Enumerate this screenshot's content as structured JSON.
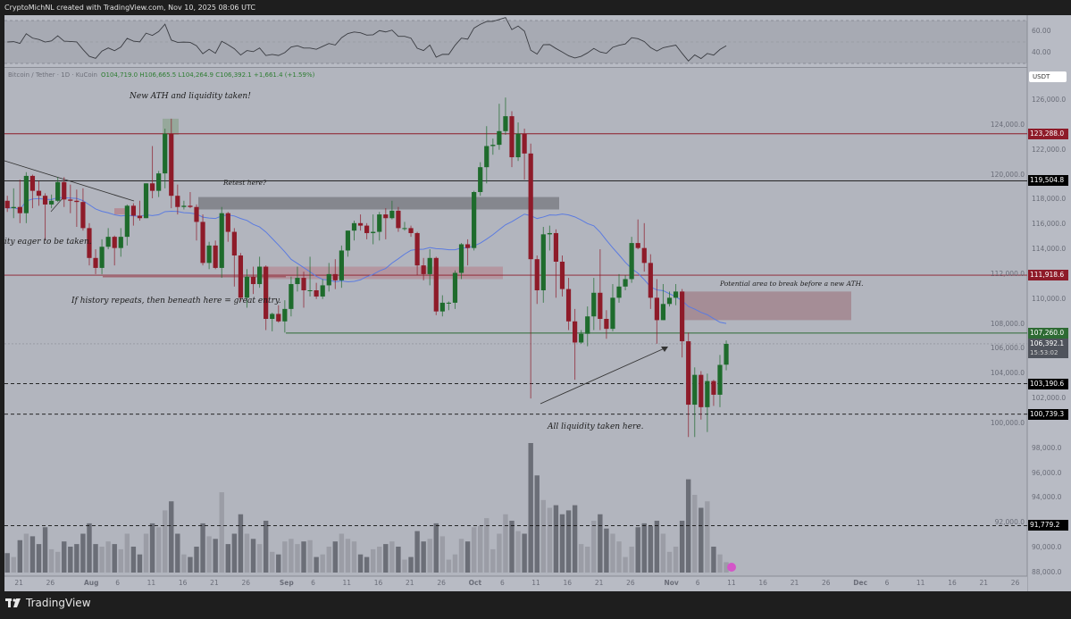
{
  "header": {
    "title": "CryptoMichNL created with TradingView.com, Nov 10, 2025 08:06 UTC"
  },
  "legend": {
    "symbol": "Bitcoin / Tether · 1D · KuCoin",
    "ohlc": "O104,719.0  H106,665.5  L104,264.9  C106,392.1  +1,661.4 (+1.59%)"
  },
  "currency": "USDT",
  "brand": "TradingView",
  "annotations": {
    "ath": "New ATH and liquidity taken!",
    "retest": "Retest here?",
    "eager": "ity eager to be taken.",
    "history": "If history repeats, then beneath here = great entry.",
    "potential": "Potential area to break before a new ATH.",
    "liquidity": "All liquidity taken here."
  },
  "colors": {
    "background": "#b2b5be",
    "up": "#1e6b2c",
    "down": "#8e1b29",
    "ma": "#5b7be0",
    "vol_up": "#9b9da6",
    "vol_down": "#6b6e77"
  },
  "chart_data": {
    "type": "candlestick",
    "ylim": [
      87500,
      127500
    ],
    "rsi_ticks": [
      "60.00",
      "40.00"
    ],
    "price_ticks": [
      "126,000.0",
      "124,000.0",
      "122,000.0",
      "120,000.0",
      "118,000.0",
      "116,000.0",
      "114,000.0",
      "112,000.0",
      "110,000.0",
      "108,000.0",
      "106,000.0",
      "104,000.0",
      "102,000.0",
      "100,000.0",
      "98,000.0",
      "96,000.0",
      "94,000.0",
      "92,000.0",
      "90,000.0",
      "88,000.0"
    ],
    "levels": [
      {
        "value": 123288.0,
        "label": "123,288.0",
        "color": "#8e1b29",
        "style": "solid"
      },
      {
        "value": 119504.8,
        "label": "119,504.8",
        "color": "#111111",
        "style": "solid"
      },
      {
        "value": 111918.6,
        "label": "111,918.6",
        "color": "#8e1b29",
        "style": "solid"
      },
      {
        "value": 107260.0,
        "label": "107,260.0",
        "color": "#2e6b34",
        "style": "solid"
      },
      {
        "value": 103190.6,
        "label": "103,190.6",
        "color": "#111111",
        "style": "dashed"
      },
      {
        "value": 100739.3,
        "label": "100,739.3",
        "color": "#111111",
        "style": "dashed"
      },
      {
        "value": 91779.2,
        "label": "91,779.2",
        "color": "#111111",
        "style": "dashed"
      }
    ],
    "last_price": {
      "value": 106392.1,
      "label": "106,392.1",
      "countdown": "15:53:02"
    },
    "x_ticks": [
      [
        "07-21",
        "21"
      ],
      [
        "07-26",
        "26"
      ],
      [
        "08-01",
        "Aug"
      ],
      [
        "08-06",
        "6"
      ],
      [
        "08-11",
        "11"
      ],
      [
        "08-16",
        "16"
      ],
      [
        "08-21",
        "21"
      ],
      [
        "08-26",
        "26"
      ],
      [
        "09-01",
        "Sep"
      ],
      [
        "09-06",
        "6"
      ],
      [
        "09-11",
        "11"
      ],
      [
        "09-16",
        "16"
      ],
      [
        "09-21",
        "21"
      ],
      [
        "09-26",
        "26"
      ],
      [
        "10-01",
        "Oct"
      ],
      [
        "10-06",
        "6"
      ],
      [
        "10-11",
        "11"
      ],
      [
        "10-16",
        "16"
      ],
      [
        "10-21",
        "21"
      ],
      [
        "10-26",
        "26"
      ],
      [
        "11-01",
        "Nov"
      ],
      [
        "11-06",
        "6"
      ],
      [
        "11-11",
        "11"
      ],
      [
        "11-16",
        "16"
      ],
      [
        "11-21",
        "21"
      ],
      [
        "11-26",
        "26"
      ],
      [
        "12-01",
        "Dec"
      ],
      [
        "12-06",
        "6"
      ],
      [
        "12-11",
        "11"
      ],
      [
        "12-16",
        "16"
      ],
      [
        "12-21",
        "21"
      ],
      [
        "12-26",
        "26"
      ]
    ],
    "candles": [
      [
        "07-19",
        117900,
        118300,
        117000,
        117300
      ],
      [
        "07-20",
        117300,
        118900,
        116500,
        117400
      ],
      [
        "07-21",
        117400,
        119600,
        116100,
        116900
      ],
      [
        "07-22",
        116900,
        120200,
        116100,
        119900
      ],
      [
        "07-23",
        119900,
        120000,
        117300,
        118700
      ],
      [
        "07-24",
        118700,
        119500,
        117500,
        118300
      ],
      [
        "07-25",
        118300,
        118500,
        114700,
        117600
      ],
      [
        "07-26",
        117600,
        118400,
        117300,
        117900
      ],
      [
        "07-27",
        117900,
        119800,
        117800,
        119400
      ],
      [
        "07-28",
        119400,
        119800,
        117400,
        118000
      ],
      [
        "07-29",
        118000,
        119200,
        116900,
        117900
      ],
      [
        "07-30",
        117900,
        118800,
        115800,
        117800
      ],
      [
        "07-31",
        117800,
        118900,
        115500,
        115700
      ],
      [
        "08-01",
        115700,
        116100,
        112700,
        113300
      ],
      [
        "08-02",
        113300,
        114000,
        112000,
        112500
      ],
      [
        "08-03",
        112500,
        114800,
        112000,
        114200
      ],
      [
        "08-04",
        114200,
        115700,
        114000,
        115000
      ],
      [
        "08-05",
        115000,
        115100,
        112700,
        114100
      ],
      [
        "08-06",
        114100,
        115700,
        113400,
        115000
      ],
      [
        "08-07",
        115000,
        117600,
        114300,
        117500
      ],
      [
        "08-08",
        117500,
        117700,
        115900,
        116700
      ],
      [
        "08-09",
        116700,
        117900,
        116300,
        116500
      ],
      [
        "08-10",
        116500,
        119300,
        116500,
        119300
      ],
      [
        "08-11",
        119300,
        122300,
        118100,
        118700
      ],
      [
        "08-12",
        118700,
        120300,
        118200,
        120100
      ],
      [
        "08-13",
        120100,
        123700,
        118900,
        123300
      ],
      [
        "08-14",
        123300,
        124500,
        117300,
        118300
      ],
      [
        "08-15",
        118300,
        119200,
        116800,
        117400
      ],
      [
        "08-16",
        117400,
        117900,
        117200,
        117500
      ],
      [
        "08-17",
        117500,
        118600,
        117300,
        117400
      ],
      [
        "08-18",
        117400,
        117600,
        114700,
        116200
      ],
      [
        "08-19",
        116200,
        116800,
        112700,
        112900
      ],
      [
        "08-20",
        112900,
        114600,
        112400,
        114300
      ],
      [
        "08-21",
        114300,
        114700,
        112400,
        112500
      ],
      [
        "08-22",
        112500,
        117400,
        111700,
        116900
      ],
      [
        "08-23",
        116900,
        117000,
        114600,
        115400
      ],
      [
        "08-24",
        115400,
        115700,
        111000,
        113500
      ],
      [
        "08-25",
        113500,
        113700,
        109800,
        110100
      ],
      [
        "08-26",
        110100,
        112400,
        109300,
        111800
      ],
      [
        "08-27",
        111800,
        112600,
        110400,
        111200
      ],
      [
        "08-28",
        111200,
        113400,
        110900,
        112600
      ],
      [
        "08-29",
        112600,
        112700,
        107500,
        108400
      ],
      [
        "08-30",
        108400,
        108900,
        107400,
        108800
      ],
      [
        "08-31",
        108800,
        109500,
        108100,
        108200
      ],
      [
        "09-01",
        108200,
        109900,
        107300,
        109200
      ],
      [
        "09-02",
        109200,
        111800,
        108600,
        111200
      ],
      [
        "09-03",
        111200,
        112600,
        110600,
        111700
      ],
      [
        "09-04",
        111700,
        112200,
        109300,
        110700
      ],
      [
        "09-05",
        110700,
        113400,
        110200,
        110700
      ],
      [
        "09-06",
        110700,
        111300,
        110000,
        110200
      ],
      [
        "09-07",
        110200,
        111600,
        110000,
        111100
      ],
      [
        "09-08",
        111100,
        112900,
        110600,
        112000
      ],
      [
        "09-09",
        112000,
        113200,
        110800,
        111500
      ],
      [
        "09-10",
        111500,
        114300,
        110900,
        113900
      ],
      [
        "09-11",
        113900,
        115500,
        113400,
        115500
      ],
      [
        "09-12",
        115500,
        116300,
        114700,
        116100
      ],
      [
        "09-13",
        116100,
        116800,
        115500,
        115900
      ],
      [
        "09-14",
        115900,
        116100,
        114800,
        115300
      ],
      [
        "09-15",
        115300,
        116800,
        114400,
        115400
      ],
      [
        "09-16",
        115400,
        117000,
        114700,
        116800
      ],
      [
        "09-17",
        116800,
        117300,
        114800,
        116500
      ],
      [
        "09-18",
        116500,
        117900,
        116400,
        117100
      ],
      [
        "09-19",
        117100,
        117400,
        115400,
        115700
      ],
      [
        "09-20",
        115700,
        116200,
        115500,
        115700
      ],
      [
        "09-21",
        115700,
        115900,
        115000,
        115300
      ],
      [
        "09-22",
        115300,
        115400,
        111900,
        112700
      ],
      [
        "09-23",
        112700,
        113300,
        111500,
        112000
      ],
      [
        "09-24",
        112000,
        114000,
        111100,
        113300
      ],
      [
        "09-25",
        113300,
        113400,
        108700,
        109000
      ],
      [
        "09-26",
        109000,
        110300,
        108600,
        109700
      ],
      [
        "09-27",
        109700,
        109800,
        109100,
        109700
      ],
      [
        "09-28",
        109700,
        112300,
        109200,
        112100
      ],
      [
        "09-29",
        112100,
        114500,
        111600,
        114400
      ],
      [
        "09-30",
        114400,
        114800,
        112700,
        114100
      ],
      [
        "10-01",
        114100,
        118700,
        113900,
        118600
      ],
      [
        "10-02",
        118600,
        121000,
        118300,
        120600
      ],
      [
        "10-03",
        120600,
        123900,
        119300,
        122300
      ],
      [
        "10-04",
        122300,
        122900,
        121600,
        122400
      ],
      [
        "10-05",
        122400,
        125700,
        122000,
        123500
      ],
      [
        "10-06",
        123500,
        126200,
        123200,
        124700
      ],
      [
        "10-07",
        124700,
        125100,
        120600,
        121400
      ],
      [
        "10-08",
        121400,
        124200,
        121100,
        123300
      ],
      [
        "10-09",
        123300,
        123700,
        119600,
        121700
      ],
      [
        "10-10",
        121700,
        122500,
        102000,
        113200
      ],
      [
        "10-11",
        113200,
        113500,
        109600,
        110700
      ],
      [
        "10-12",
        110700,
        115800,
        109700,
        115200
      ],
      [
        "10-13",
        115200,
        115900,
        113900,
        115300
      ],
      [
        "10-14",
        115300,
        115600,
        110100,
        113000
      ],
      [
        "10-15",
        113000,
        113500,
        110200,
        110800
      ],
      [
        "10-16",
        110800,
        111700,
        107500,
        108200
      ],
      [
        "10-17",
        108200,
        109200,
        103500,
        106500
      ],
      [
        "10-18",
        106500,
        107500,
        106400,
        107200
      ],
      [
        "10-19",
        107200,
        109400,
        106200,
        108600
      ],
      [
        "10-20",
        108600,
        111700,
        107500,
        110500
      ],
      [
        "10-21",
        110500,
        114000,
        107500,
        108400
      ],
      [
        "10-22",
        108400,
        109100,
        106800,
        107600
      ],
      [
        "10-23",
        107600,
        111200,
        107400,
        110100
      ],
      [
        "10-24",
        110100,
        112000,
        109700,
        111000
      ],
      [
        "10-25",
        111000,
        111900,
        110700,
        111600
      ],
      [
        "10-26",
        111600,
        115000,
        111300,
        114500
      ],
      [
        "10-27",
        114500,
        116400,
        114000,
        114100
      ],
      [
        "10-28",
        114100,
        116100,
        112200,
        112900
      ],
      [
        "10-29",
        112900,
        113600,
        109200,
        110100
      ],
      [
        "10-30",
        110100,
        111600,
        106400,
        108300
      ],
      [
        "10-31",
        108300,
        111200,
        108300,
        109600
      ],
      [
        "11-01",
        109600,
        110600,
        109400,
        110100
      ],
      [
        "11-02",
        110100,
        111200,
        109500,
        110600
      ],
      [
        "11-03",
        110600,
        110800,
        105300,
        106600
      ],
      [
        "11-04",
        106600,
        107300,
        98900,
        101500
      ],
      [
        "11-05",
        101500,
        104500,
        98900,
        103900
      ],
      [
        "11-06",
        103900,
        104200,
        100300,
        101300
      ],
      [
        "11-07",
        101300,
        104000,
        99300,
        103400
      ],
      [
        "11-08",
        103400,
        103500,
        101400,
        102300
      ],
      [
        "11-09",
        102300,
        105500,
        101300,
        104700
      ],
      [
        "11-10",
        104719,
        106665.5,
        104264.9,
        106392.1
      ]
    ],
    "volume_relative": [
      15,
      12,
      25,
      30,
      28,
      22,
      35,
      18,
      16,
      24,
      20,
      22,
      30,
      38,
      22,
      20,
      24,
      22,
      18,
      30,
      20,
      14,
      30,
      38,
      35,
      48,
      55,
      30,
      14,
      12,
      20,
      38,
      28,
      26,
      62,
      22,
      30,
      45,
      30,
      26,
      22,
      40,
      16,
      14,
      24,
      26,
      22,
      24,
      25,
      12,
      14,
      20,
      24,
      30,
      26,
      24,
      14,
      12,
      18,
      20,
      22,
      24,
      20,
      10,
      12,
      32,
      24,
      26,
      38,
      28,
      10,
      14,
      26,
      24,
      35,
      36,
      42,
      18,
      30,
      45,
      40,
      32,
      30,
      100,
      75,
      56,
      50,
      52,
      45,
      48,
      52,
      22,
      20,
      40,
      45,
      34,
      30,
      24,
      12,
      20,
      35,
      38,
      36,
      40,
      30,
      16,
      20,
      40,
      72,
      60,
      50,
      55,
      20,
      14,
      8
    ]
  }
}
